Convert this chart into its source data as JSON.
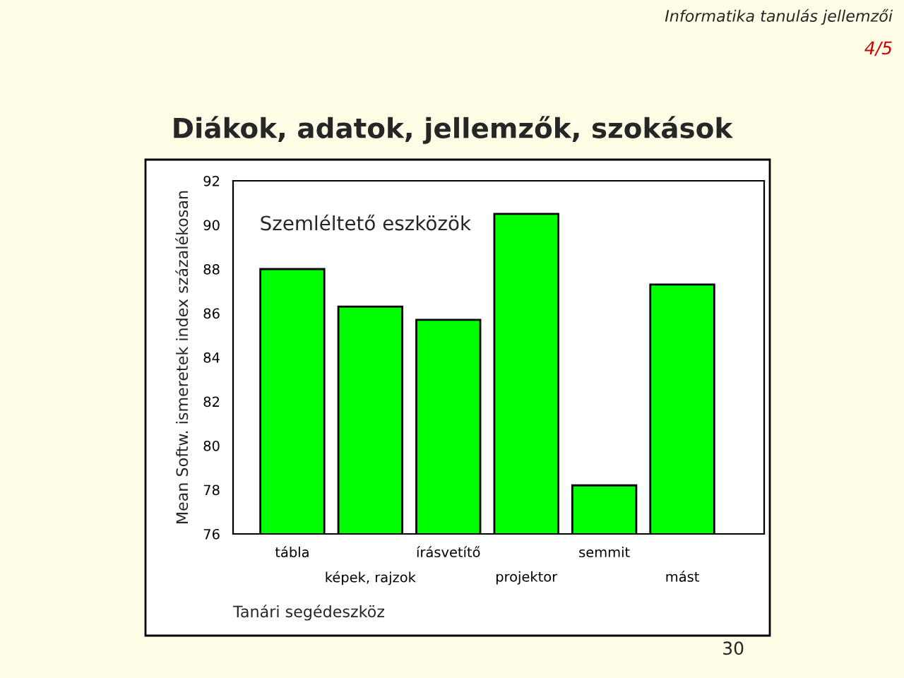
{
  "chart_data": {
    "type": "bar",
    "title": "Diákok, adatok, jellemzők, szokások",
    "xlabel": "Tanári segédeszköz",
    "ylabel": "Mean Softw. ismeretek index százalékosan",
    "annotations": [
      "Szemléltető eszközök",
      "Informatika tanulás jellemzői",
      "4/5",
      "30"
    ],
    "categories": [
      "tábla",
      "képek, rajzok",
      "írásvetítő",
      "projektor",
      "semmit",
      "mást"
    ],
    "values": [
      88.0,
      86.3,
      85.7,
      90.5,
      78.2,
      87.3
    ],
    "color": "#00ff00",
    "ylim": [
      76,
      92
    ],
    "yticks": [
      76,
      78,
      80,
      82,
      84,
      86,
      88,
      90,
      92
    ],
    "grid": false,
    "legend": false
  }
}
